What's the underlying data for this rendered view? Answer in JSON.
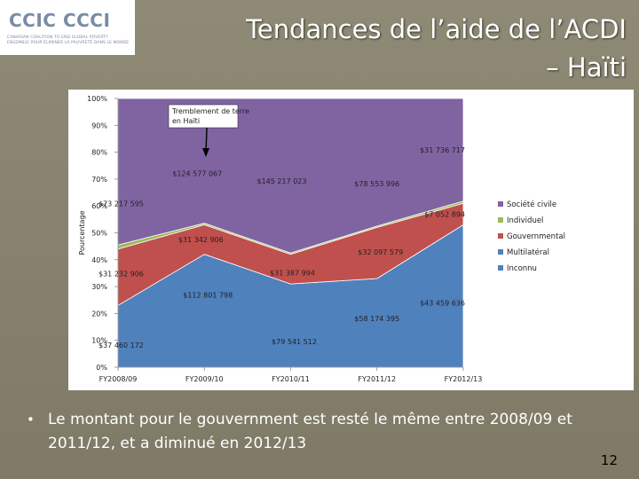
{
  "logo": {
    "main": "CCIC CCCI",
    "subtitle_line1": "CANADIAN COALITION TO END GLOBAL POVERTY",
    "subtitle_line2": "ENSEMBLE POUR ÉLIMINER LA PAUVRETÉ DANS LE MONDE"
  },
  "slide": {
    "title_line1": "Tendances de l’aide de l’ACDI",
    "title_line2": "– Haïti",
    "bullet": "Le montant pour le gouvernment est resté le même entre 2008/09 et 2011/12, et a diminué en 2012/13",
    "page_number": "12"
  },
  "chart_data": {
    "type": "area",
    "stacked_percent": true,
    "categories": [
      "FY2008/09",
      "FY2009/10",
      "FY2010/11",
      "FY2011/12",
      "FY2012/13"
    ],
    "ylabel": "Pourcentage",
    "yticks": [
      "0%",
      "10%",
      "20%",
      "30%",
      "40%",
      "50%",
      "60%",
      "70%",
      "80%",
      "90%",
      "100%"
    ],
    "ylim": [
      0,
      100
    ],
    "grid": false,
    "legend_position": "right",
    "series": [
      {
        "name": "Inconnu",
        "color": "#4f81bd",
        "values_pct": [
          0,
          0,
          0,
          0,
          0
        ]
      },
      {
        "name": "Multilatéral",
        "color": "#4f81bd",
        "values_pct": [
          23,
          42,
          31,
          33,
          53
        ],
        "labels": [
          "$37 460 172",
          "$112 801 798",
          "$79 541 512",
          "$58 174 395",
          "$43 459 636"
        ]
      },
      {
        "name": "Gouvernmental",
        "color": "#c0504d",
        "values_pct": [
          21,
          11,
          11,
          19,
          8
        ],
        "labels": [
          "$31 232 906",
          "$31 342 906",
          "$31 387 994",
          "$32 097 579",
          "$7 052 894"
        ]
      },
      {
        "name": "Individuel",
        "color": "#9bbb59",
        "values_pct": [
          1.5,
          0.6,
          0.5,
          0.5,
          0.8
        ]
      },
      {
        "name": "Société civile",
        "color": "#8064a2",
        "values_pct": [
          54.5,
          46.4,
          57.5,
          47.5,
          38.2
        ],
        "labels": [
          "$73 217 595",
          "$124 577 067",
          "$145 217 023",
          "$78 553 996",
          "$31 736 717"
        ]
      }
    ],
    "annotation": "Tremblement de terre en Haïti"
  }
}
